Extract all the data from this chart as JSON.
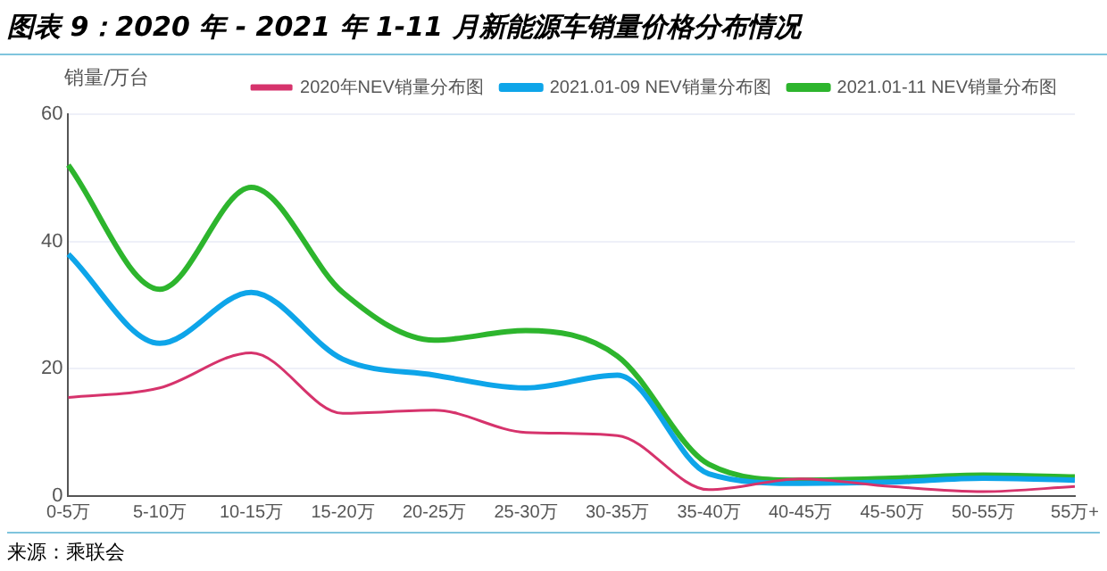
{
  "chart_data": {
    "type": "line",
    "title": "图表 9：2020 年 - 2021 年 1-11 月新能源车销量价格分布情况",
    "ylabel": "销量/万台",
    "categories": [
      "0-5万",
      "5-10万",
      "10-15万",
      "15-20万",
      "20-25万",
      "25-30万",
      "30-35万",
      "35-40万",
      "40-45万",
      "45-50万",
      "50-55万",
      "55万+"
    ],
    "series": [
      {
        "name": "2020年NEV销量分布图",
        "color": "#d6336c",
        "values": [
          15.5,
          17,
          22.5,
          13,
          13.5,
          10,
          9.5,
          1,
          2.7,
          1.5,
          0.7,
          1.5
        ]
      },
      {
        "name": "2021.01-09 NEV销量分布图",
        "color": "#0ea5e9",
        "values": [
          38,
          24,
          32,
          21.5,
          19,
          17,
          19,
          3.5,
          2,
          2.2,
          2.8,
          2.5
        ]
      },
      {
        "name": "2021.01-11 NEV销量分布图",
        "color": "#2db52d",
        "values": [
          52,
          32.5,
          48.5,
          32,
          24.5,
          26,
          22,
          5,
          2.5,
          2.8,
          3.3,
          3
        ]
      }
    ],
    "ylim": [
      0,
      60
    ],
    "yticks": [
      0,
      20,
      40,
      60
    ],
    "grid": "y",
    "legend": "top",
    "marker": "none",
    "line_style": "solid",
    "annotations": [
      "来源：乘联会"
    ]
  }
}
